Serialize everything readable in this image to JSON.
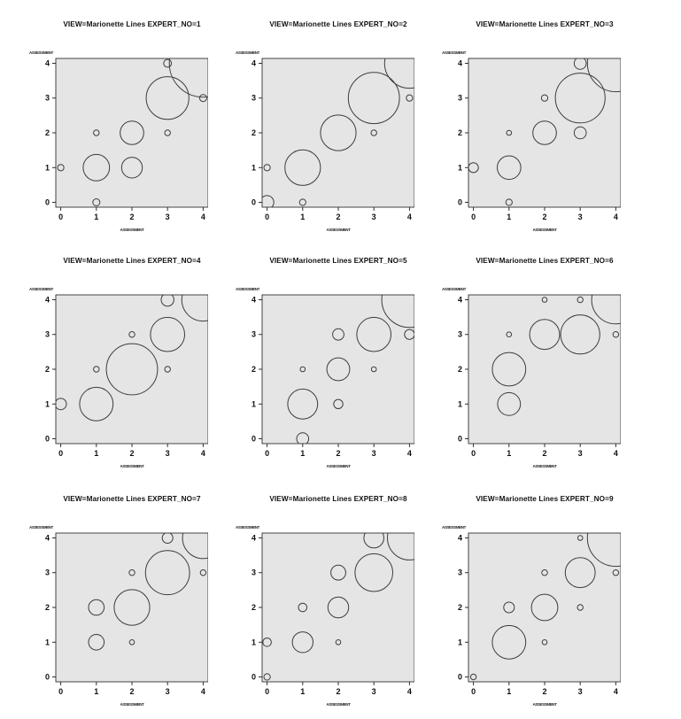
{
  "page": {
    "background": "#ffffff",
    "description_colors": {
      "plot_bg": "#e5e5e5",
      "frame_stroke": "#1a1a1a",
      "bubble_stroke": "#3d3d3d",
      "text": "#111111"
    }
  },
  "chart_data": {
    "type": "bubble",
    "layout": "3x3 small multiples (agreement bubble plots per expert)",
    "x_range": [
      0,
      4
    ],
    "y_range": [
      0,
      4
    ],
    "x_ticks": [
      "0",
      "1",
      "2",
      "3",
      "4"
    ],
    "y_ticks": [
      "4",
      "3",
      "2",
      "1",
      "0"
    ],
    "x_axis_label": "ASSESSMENT",
    "y_axis_label": "ASSESSMENT",
    "grid": "off",
    "legend": "none",
    "panels": [
      {
        "expert_no": 1,
        "title": "VIEW=Marionette Lines  EXPERT_NO=1",
        "bubbles": [
          {
            "x": 0,
            "y": 1,
            "r": 0.09
          },
          {
            "x": 1,
            "y": 0,
            "r": 0.1
          },
          {
            "x": 1,
            "y": 1,
            "r": 0.37
          },
          {
            "x": 1,
            "y": 2,
            "r": 0.08
          },
          {
            "x": 2,
            "y": 1,
            "r": 0.29
          },
          {
            "x": 2,
            "y": 2,
            "r": 0.33
          },
          {
            "x": 3,
            "y": 2,
            "r": 0.08
          },
          {
            "x": 3,
            "y": 3,
            "r": 0.6
          },
          {
            "x": 3,
            "y": 4,
            "r": 0.11
          },
          {
            "x": 4,
            "y": 3,
            "r": 0.1
          },
          {
            "x": 4,
            "y": 4,
            "r": 0.95
          }
        ]
      },
      {
        "expert_no": 2,
        "title": "VIEW=Marionette Lines  EXPERT_NO=2",
        "bubbles": [
          {
            "x": 0,
            "y": 0,
            "r": 0.19
          },
          {
            "x": 0,
            "y": 1,
            "r": 0.09
          },
          {
            "x": 1,
            "y": 0,
            "r": 0.09
          },
          {
            "x": 1,
            "y": 1,
            "r": 0.5
          },
          {
            "x": 2,
            "y": 2,
            "r": 0.5
          },
          {
            "x": 3,
            "y": 2,
            "r": 0.08
          },
          {
            "x": 3,
            "y": 3,
            "r": 0.72
          },
          {
            "x": 4,
            "y": 3,
            "r": 0.09
          },
          {
            "x": 4,
            "y": 4,
            "r": 0.7
          }
        ]
      },
      {
        "expert_no": 3,
        "title": "VIEW=Marionette Lines  EXPERT_NO=3",
        "bubbles": [
          {
            "x": 0,
            "y": 1,
            "r": 0.14
          },
          {
            "x": 1,
            "y": 0,
            "r": 0.09
          },
          {
            "x": 1,
            "y": 1,
            "r": 0.33
          },
          {
            "x": 1,
            "y": 2,
            "r": 0.07
          },
          {
            "x": 2,
            "y": 2,
            "r": 0.33
          },
          {
            "x": 2,
            "y": 3,
            "r": 0.09
          },
          {
            "x": 3,
            "y": 2,
            "r": 0.17
          },
          {
            "x": 3,
            "y": 3,
            "r": 0.7
          },
          {
            "x": 3,
            "y": 4,
            "r": 0.17
          },
          {
            "x": 4,
            "y": 4,
            "r": 0.8
          }
        ]
      },
      {
        "expert_no": 4,
        "title": "VIEW=Marionette Lines  EXPERT_NO=4",
        "bubbles": [
          {
            "x": 0,
            "y": 1,
            "r": 0.16
          },
          {
            "x": 1,
            "y": 1,
            "r": 0.47
          },
          {
            "x": 1,
            "y": 2,
            "r": 0.08
          },
          {
            "x": 2,
            "y": 2,
            "r": 0.72
          },
          {
            "x": 2,
            "y": 3,
            "r": 0.08
          },
          {
            "x": 3,
            "y": 2,
            "r": 0.08
          },
          {
            "x": 3,
            "y": 3,
            "r": 0.48
          },
          {
            "x": 3,
            "y": 4,
            "r": 0.18
          },
          {
            "x": 4,
            "y": 4,
            "r": 0.6
          }
        ]
      },
      {
        "expert_no": 5,
        "title": "VIEW=Marionette Lines  EXPERT_NO=5",
        "bubbles": [
          {
            "x": 1,
            "y": 0,
            "r": 0.17
          },
          {
            "x": 1,
            "y": 1,
            "r": 0.42
          },
          {
            "x": 1,
            "y": 2,
            "r": 0.07
          },
          {
            "x": 2,
            "y": 1,
            "r": 0.13
          },
          {
            "x": 2,
            "y": 2,
            "r": 0.32
          },
          {
            "x": 2,
            "y": 3,
            "r": 0.16
          },
          {
            "x": 3,
            "y": 2,
            "r": 0.07
          },
          {
            "x": 3,
            "y": 3,
            "r": 0.48
          },
          {
            "x": 4,
            "y": 3,
            "r": 0.14
          },
          {
            "x": 4,
            "y": 4,
            "r": 0.78
          }
        ]
      },
      {
        "expert_no": 6,
        "title": "VIEW=Marionette Lines  EXPERT_NO=6",
        "bubbles": [
          {
            "x": 1,
            "y": 1,
            "r": 0.32
          },
          {
            "x": 1,
            "y": 2,
            "r": 0.47
          },
          {
            "x": 1,
            "y": 3,
            "r": 0.07
          },
          {
            "x": 2,
            "y": 3,
            "r": 0.42
          },
          {
            "x": 2,
            "y": 4,
            "r": 0.07
          },
          {
            "x": 3,
            "y": 3,
            "r": 0.55
          },
          {
            "x": 3,
            "y": 4,
            "r": 0.08
          },
          {
            "x": 4,
            "y": 3,
            "r": 0.08
          },
          {
            "x": 4,
            "y": 4,
            "r": 0.68
          }
        ]
      },
      {
        "expert_no": 7,
        "title": "VIEW=Marionette Lines  EXPERT_NO=7",
        "bubbles": [
          {
            "x": 1,
            "y": 1,
            "r": 0.22
          },
          {
            "x": 1,
            "y": 2,
            "r": 0.22
          },
          {
            "x": 2,
            "y": 1,
            "r": 0.07
          },
          {
            "x": 2,
            "y": 2,
            "r": 0.5
          },
          {
            "x": 2,
            "y": 3,
            "r": 0.08
          },
          {
            "x": 3,
            "y": 3,
            "r": 0.62
          },
          {
            "x": 3,
            "y": 4,
            "r": 0.15
          },
          {
            "x": 4,
            "y": 3,
            "r": 0.08
          },
          {
            "x": 4,
            "y": 4,
            "r": 0.58
          }
        ]
      },
      {
        "expert_no": 8,
        "title": "VIEW=Marionette Lines  EXPERT_NO=8",
        "bubbles": [
          {
            "x": 0,
            "y": 0,
            "r": 0.09
          },
          {
            "x": 0,
            "y": 1,
            "r": 0.12
          },
          {
            "x": 1,
            "y": 1,
            "r": 0.29
          },
          {
            "x": 1,
            "y": 2,
            "r": 0.12
          },
          {
            "x": 2,
            "y": 1,
            "r": 0.07
          },
          {
            "x": 2,
            "y": 2,
            "r": 0.29
          },
          {
            "x": 2,
            "y": 3,
            "r": 0.21
          },
          {
            "x": 3,
            "y": 3,
            "r": 0.53
          },
          {
            "x": 3,
            "y": 4,
            "r": 0.28
          },
          {
            "x": 4,
            "y": 4,
            "r": 0.62
          }
        ]
      },
      {
        "expert_no": 9,
        "title": "VIEW=Marionette Lines  EXPERT_NO=9",
        "bubbles": [
          {
            "x": 0,
            "y": 0,
            "r": 0.08
          },
          {
            "x": 1,
            "y": 1,
            "r": 0.47
          },
          {
            "x": 1,
            "y": 2,
            "r": 0.15
          },
          {
            "x": 2,
            "y": 1,
            "r": 0.07
          },
          {
            "x": 2,
            "y": 2,
            "r": 0.37
          },
          {
            "x": 2,
            "y": 3,
            "r": 0.08
          },
          {
            "x": 3,
            "y": 2,
            "r": 0.08
          },
          {
            "x": 3,
            "y": 3,
            "r": 0.42
          },
          {
            "x": 3,
            "y": 4,
            "r": 0.07
          },
          {
            "x": 4,
            "y": 3,
            "r": 0.08
          },
          {
            "x": 4,
            "y": 4,
            "r": 0.8
          }
        ]
      }
    ]
  }
}
